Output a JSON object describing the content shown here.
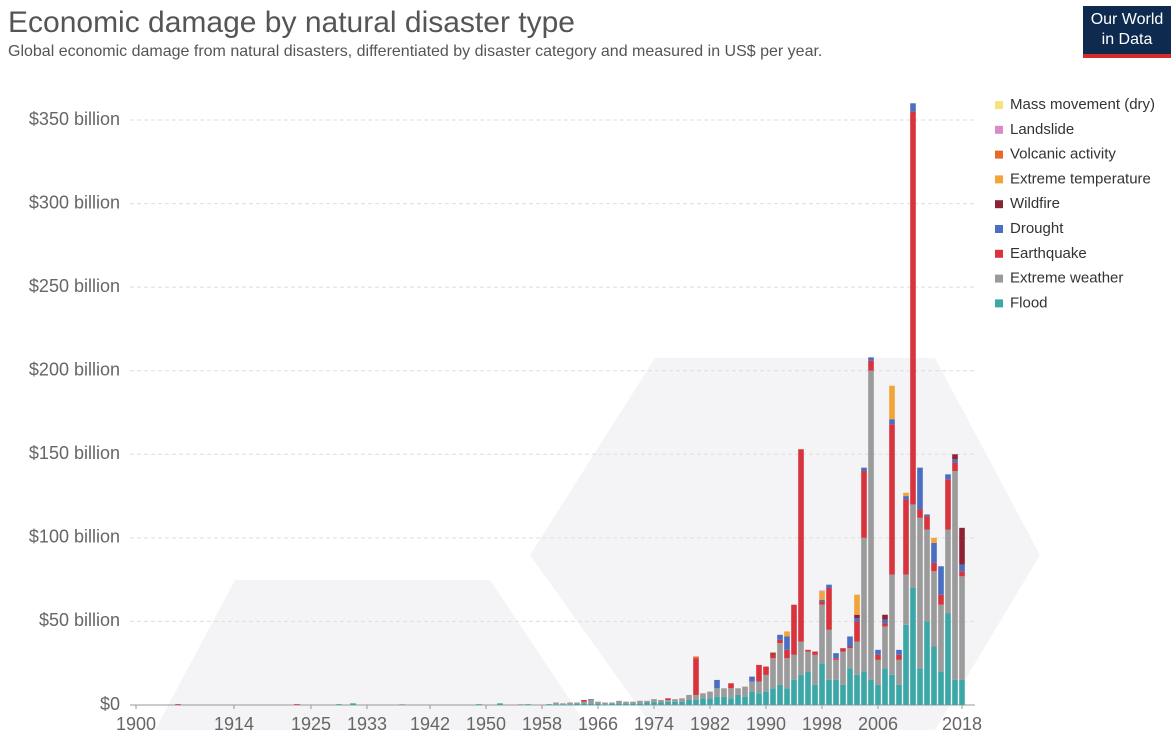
{
  "chart_data": {
    "type": "stacked-bar",
    "title": "Economic damage by natural disaster type",
    "subtitle": "Global economic damage from natural disasters, differentiated by disaster category and measured in US$ per year.",
    "logo": [
      "Our World",
      "in Data"
    ],
    "xlim": [
      1900,
      2018
    ],
    "xticks": [
      1900,
      1914,
      1925,
      1933,
      1942,
      1950,
      1958,
      1966,
      1974,
      1982,
      1990,
      1998,
      2006,
      2018
    ],
    "ylim": [
      0,
      350
    ],
    "yticks": [
      {
        "value": 0,
        "label": "$0"
      },
      {
        "value": 50,
        "label": "$50 billion"
      },
      {
        "value": 100,
        "label": "$100 billion"
      },
      {
        "value": 150,
        "label": "$150 billion"
      },
      {
        "value": 200,
        "label": "$200 billion"
      },
      {
        "value": 250,
        "label": "$250 billion"
      },
      {
        "value": 300,
        "label": "$300 billion"
      },
      {
        "value": 350,
        "label": "$350 billion"
      }
    ],
    "grid": true,
    "legend": "right",
    "x": [
      1900,
      1901,
      1902,
      1903,
      1904,
      1905,
      1906,
      1907,
      1908,
      1909,
      1910,
      1911,
      1912,
      1913,
      1914,
      1915,
      1916,
      1917,
      1918,
      1919,
      1920,
      1921,
      1922,
      1923,
      1924,
      1925,
      1926,
      1927,
      1928,
      1929,
      1930,
      1931,
      1932,
      1933,
      1934,
      1935,
      1936,
      1937,
      1938,
      1939,
      1940,
      1941,
      1942,
      1943,
      1944,
      1945,
      1946,
      1947,
      1948,
      1949,
      1950,
      1951,
      1952,
      1953,
      1954,
      1955,
      1956,
      1957,
      1958,
      1959,
      1960,
      1961,
      1962,
      1963,
      1964,
      1965,
      1966,
      1967,
      1968,
      1969,
      1970,
      1971,
      1972,
      1973,
      1974,
      1975,
      1976,
      1977,
      1978,
      1979,
      1980,
      1981,
      1982,
      1983,
      1984,
      1985,
      1986,
      1987,
      1988,
      1989,
      1990,
      1991,
      1992,
      1993,
      1994,
      1995,
      1996,
      1997,
      1998,
      1999,
      2000,
      2001,
      2002,
      2003,
      2004,
      2005,
      2006,
      2007,
      2008,
      2009,
      2010,
      2011,
      2012,
      2013,
      2014,
      2015,
      2016,
      2017,
      2018
    ],
    "series": [
      {
        "name": "Flood",
        "color": "#3ba7a7",
        "values": [
          0,
          0,
          0,
          0,
          0,
          0,
          0,
          0,
          0,
          0,
          0,
          0,
          0,
          0,
          0,
          0,
          0,
          0,
          0,
          0,
          0,
          0,
          0,
          0,
          0,
          0,
          0,
          0,
          0,
          0.5,
          0,
          1,
          0,
          0,
          0,
          0,
          0,
          0,
          0,
          0,
          0,
          0,
          0,
          0,
          0,
          0,
          0,
          0,
          0,
          0.5,
          0,
          0,
          1,
          0,
          0,
          0,
          0.5,
          0,
          0,
          0.5,
          0.5,
          0.5,
          0.5,
          1,
          1,
          1,
          1,
          0.5,
          1,
          1,
          1,
          1,
          1,
          1.5,
          1.5,
          1.5,
          2,
          2,
          2,
          3,
          3,
          4,
          4,
          5,
          5,
          4,
          6,
          5,
          8,
          7,
          8,
          10,
          12,
          10,
          15,
          18,
          20,
          12,
          25,
          15,
          15,
          12,
          22,
          18,
          20,
          15,
          12,
          22,
          18,
          12,
          48,
          70,
          22,
          50,
          35,
          20,
          55,
          15,
          15
        ]
      },
      {
        "name": "Extreme weather",
        "color": "#9b9b9b",
        "values": [
          0,
          0,
          0,
          0,
          0,
          0,
          0,
          0,
          0,
          0,
          0,
          0,
          0,
          0,
          0,
          0,
          0,
          0,
          0,
          0,
          0,
          0,
          0,
          0,
          0,
          0,
          0,
          0,
          0,
          0,
          0,
          0,
          0,
          0,
          0,
          0,
          0,
          0,
          0.5,
          0,
          0,
          0,
          0,
          0,
          0,
          0,
          0,
          0,
          0,
          0,
          0,
          0,
          0,
          0,
          0,
          0.5,
          0,
          0,
          0,
          0,
          1,
          0.5,
          1,
          0.5,
          1,
          2,
          1,
          1,
          0.5,
          1.5,
          1,
          1,
          1.5,
          1,
          2,
          1.5,
          1,
          1.5,
          2,
          3,
          3,
          3,
          4,
          5,
          5,
          6,
          4,
          6,
          6,
          7,
          10,
          18,
          25,
          18,
          15,
          20,
          12,
          18,
          35,
          30,
          12,
          20,
          12,
          20,
          80,
          185,
          15,
          25,
          60,
          15,
          30,
          50,
          90,
          55,
          45,
          40,
          50,
          125,
          62
        ]
      },
      {
        "name": "Earthquake",
        "color": "#d8343d",
        "values": [
          0,
          0,
          0,
          0,
          0,
          0,
          0.5,
          0,
          0,
          0,
          0,
          0,
          0,
          0,
          0,
          0,
          0,
          0,
          0,
          0,
          0,
          0,
          0,
          0.5,
          0,
          0,
          0,
          0,
          0,
          0,
          0,
          0,
          0,
          0,
          0,
          0,
          0,
          0,
          0,
          0,
          0,
          0,
          0,
          0,
          0,
          0,
          0,
          0,
          0,
          0,
          0,
          0,
          0,
          0,
          0,
          0,
          0,
          0,
          0,
          0,
          0,
          0,
          0,
          0,
          1,
          0,
          0,
          0,
          0,
          0,
          0,
          0,
          0,
          0,
          0,
          0,
          1,
          0,
          0,
          0,
          22,
          0,
          0,
          0,
          0,
          3,
          0,
          0,
          0,
          10,
          5,
          2,
          2,
          5,
          30,
          115,
          1,
          2,
          2,
          25,
          1,
          2,
          1,
          12,
          40,
          6,
          3,
          2,
          90,
          3,
          45,
          235,
          5,
          8,
          5,
          6,
          30,
          5,
          3
        ]
      },
      {
        "name": "Drought",
        "color": "#4a6ec0",
        "values": [
          0,
          0,
          0,
          0,
          0,
          0,
          0,
          0,
          0,
          0,
          0,
          0,
          0,
          0,
          0,
          0,
          0,
          0,
          0,
          0,
          0,
          0,
          0,
          0,
          0,
          0,
          0,
          0,
          0,
          0,
          0,
          0,
          0,
          0,
          0,
          0,
          0,
          0,
          0,
          0,
          0,
          0,
          0,
          0,
          0,
          0,
          0,
          0,
          0,
          0,
          0,
          0,
          0,
          0,
          0,
          0,
          0,
          0,
          0,
          0,
          0,
          0,
          0,
          0,
          0,
          0.5,
          0,
          0,
          0,
          0,
          0,
          0,
          0,
          0,
          0,
          0,
          0,
          0,
          0,
          0,
          0,
          0,
          0,
          5,
          0,
          0,
          0,
          0,
          3,
          0,
          0,
          0,
          3,
          8,
          0,
          0,
          0,
          0,
          1,
          2,
          3,
          0,
          6,
          2,
          2,
          2,
          3,
          2,
          3,
          3,
          2,
          5,
          25,
          1,
          12,
          17,
          3,
          2,
          4
        ]
      },
      {
        "name": "Wildfire",
        "color": "#8c2233",
        "values": [
          0,
          0,
          0,
          0,
          0,
          0,
          0,
          0,
          0,
          0,
          0,
          0,
          0,
          0,
          0,
          0,
          0,
          0,
          0,
          0,
          0,
          0,
          0,
          0,
          0,
          0,
          0,
          0,
          0,
          0,
          0,
          0,
          0,
          0,
          0,
          0,
          0,
          0,
          0,
          0,
          0,
          0,
          0,
          0,
          0,
          0,
          0,
          0,
          0,
          0,
          0,
          0,
          0,
          0,
          0,
          0,
          0,
          0,
          0,
          0,
          0,
          0,
          0,
          0,
          0,
          0,
          0,
          0,
          0,
          0,
          0,
          0,
          0,
          0,
          0,
          0,
          0,
          0,
          0,
          0,
          0,
          0,
          0,
          0,
          0,
          0,
          0,
          0,
          0,
          0,
          0,
          1,
          0,
          0,
          0,
          0,
          0,
          0,
          0,
          0,
          0,
          0,
          0,
          2,
          0,
          0,
          0,
          3,
          0,
          0,
          0,
          0,
          0,
          0,
          0,
          0,
          0,
          3,
          22
        ]
      },
      {
        "name": "Extreme temperature",
        "color": "#f2a33a",
        "values": [
          0,
          0,
          0,
          0,
          0,
          0,
          0,
          0,
          0,
          0,
          0,
          0,
          0,
          0,
          0,
          0,
          0,
          0,
          0,
          0,
          0,
          0,
          0,
          0,
          0,
          0,
          0,
          0,
          0,
          0,
          0,
          0,
          0,
          0,
          0,
          0,
          0,
          0,
          0,
          0,
          0,
          0,
          0,
          0,
          0,
          0,
          0,
          0,
          0,
          0,
          0,
          0,
          0,
          0,
          0,
          0,
          0,
          0,
          0,
          0,
          0,
          0,
          0,
          0,
          0,
          0,
          0,
          0,
          0,
          0,
          0,
          0,
          0,
          0,
          0,
          0,
          0,
          0,
          0,
          0,
          0,
          0,
          0,
          0,
          0,
          0,
          0,
          0,
          0,
          0,
          0,
          0,
          0,
          3,
          0,
          0,
          0,
          0,
          5,
          0,
          0,
          0,
          0,
          12,
          0,
          0,
          0,
          0,
          20,
          0,
          2,
          0,
          0,
          0,
          3,
          0,
          0,
          0,
          0
        ]
      },
      {
        "name": "Volcanic activity",
        "color": "#e8672b",
        "values": [
          0,
          0,
          0,
          0,
          0,
          0,
          0,
          0,
          0,
          0,
          0,
          0,
          0,
          0,
          0,
          0,
          0,
          0,
          0,
          0,
          0,
          0,
          0,
          0,
          0,
          0,
          0,
          0,
          0,
          0,
          0,
          0,
          0,
          0,
          0,
          0,
          0,
          0,
          0,
          0,
          0,
          0,
          0,
          0,
          0,
          0,
          0,
          0,
          0,
          0,
          0,
          0,
          0,
          0,
          0,
          0,
          0,
          0,
          0,
          0,
          0,
          0,
          0,
          0,
          0,
          0,
          0,
          0,
          0,
          0,
          0,
          0,
          0,
          0,
          0,
          0,
          0,
          0,
          0,
          0,
          1,
          0,
          0,
          0,
          0,
          0,
          0,
          0,
          0,
          0,
          0,
          0.5,
          0,
          0,
          0,
          0,
          0,
          0,
          0,
          0,
          0,
          0,
          0,
          0,
          0,
          0,
          0,
          0,
          0,
          0,
          0,
          0,
          0,
          0,
          0,
          0,
          0,
          0,
          0
        ]
      },
      {
        "name": "Landslide",
        "color": "#d98bc7",
        "values": [
          0,
          0,
          0,
          0,
          0,
          0,
          0,
          0,
          0,
          0,
          0,
          0,
          0,
          0,
          0,
          0,
          0,
          0,
          0,
          0,
          0,
          0,
          0,
          0,
          0,
          0,
          0,
          0,
          0,
          0,
          0,
          0,
          0,
          0,
          0,
          0,
          0,
          0,
          0,
          0,
          0,
          0,
          0,
          0,
          0,
          0,
          0,
          0,
          0,
          0,
          0,
          0,
          0,
          0,
          0,
          0,
          0,
          0,
          0,
          0,
          0,
          0,
          0,
          0,
          0,
          0,
          0,
          0,
          0,
          0,
          0,
          0,
          0,
          0,
          0,
          0,
          0,
          0,
          0,
          0,
          0,
          0,
          0,
          0,
          0,
          0,
          0,
          0,
          0,
          0,
          0,
          0,
          0,
          0,
          0,
          0,
          0,
          0,
          0.5,
          0,
          0,
          0,
          0,
          0,
          0,
          0,
          0,
          0,
          0,
          0,
          0,
          0,
          0,
          0,
          0,
          0,
          0,
          0,
          0
        ]
      },
      {
        "name": "Mass movement (dry)",
        "color": "#f6e27c",
        "values": [
          0,
          0,
          0,
          0,
          0,
          0,
          0,
          0,
          0,
          0,
          0,
          0,
          0,
          0,
          0,
          0,
          0,
          0,
          0,
          0,
          0,
          0,
          0,
          0,
          0,
          0,
          0,
          0,
          0,
          0,
          0,
          0,
          0,
          0,
          0,
          0,
          0,
          0,
          0,
          0,
          0,
          0,
          0,
          0,
          0,
          0,
          0,
          0,
          0,
          0,
          0,
          0,
          0,
          0,
          0,
          0,
          0,
          0,
          0,
          0,
          0,
          0,
          0,
          0,
          0,
          0,
          0,
          0,
          0,
          0,
          0,
          0,
          0,
          0,
          0,
          0,
          0,
          0,
          0,
          0,
          0,
          0,
          0,
          0,
          0,
          0,
          0,
          0,
          0,
          0,
          0,
          0,
          0,
          0,
          0,
          0,
          0,
          0,
          0,
          0,
          0,
          0,
          0,
          0,
          0,
          0,
          0,
          0,
          0,
          0,
          0,
          0,
          0,
          0,
          0,
          0,
          0,
          0,
          0
        ]
      }
    ]
  }
}
